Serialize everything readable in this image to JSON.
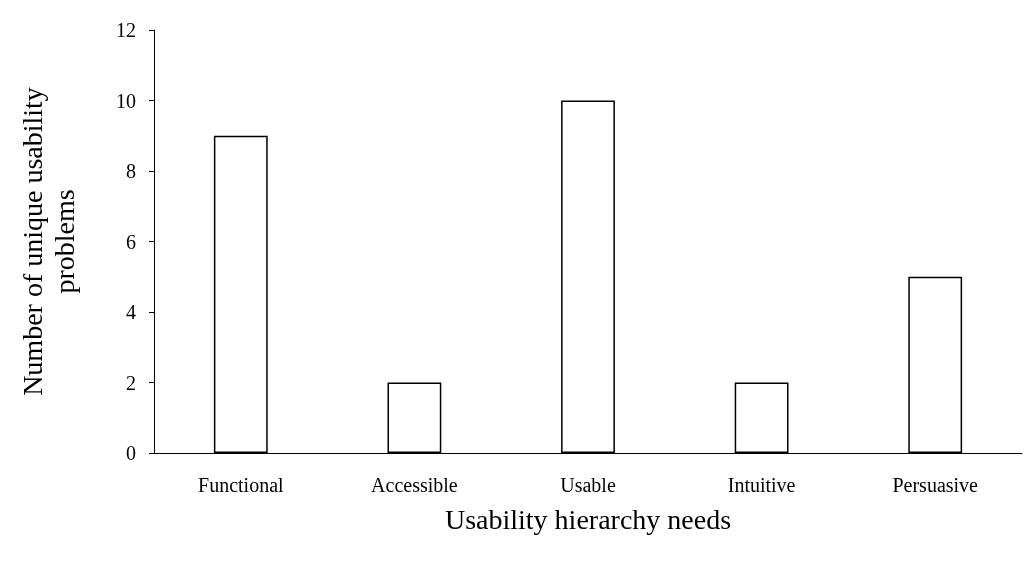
{
  "chart_data": {
    "type": "bar",
    "xlabel": "Usability hierarchy needs",
    "ylabel": "Number of unique usability problems",
    "categories": [
      "Functional",
      "Accessible",
      "Usable",
      "Intuitive",
      "Persuasive"
    ],
    "values": [
      9,
      2,
      10,
      2,
      5
    ],
    "color": "#ffffff",
    "ylim": [
      0,
      12
    ],
    "yticks": [
      0,
      2,
      4,
      6,
      8,
      10,
      12
    ],
    "grid": false
  }
}
